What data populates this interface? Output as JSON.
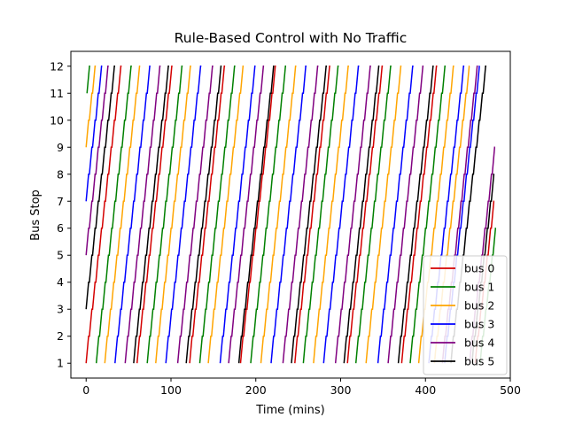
{
  "chart_data": {
    "type": "line",
    "title": "Rule-Based Control with No Traffic",
    "xlabel": "Time (mins)",
    "ylabel": "Bus Stop",
    "xlim": [
      -18,
      500
    ],
    "ylim": [
      0.45,
      12.55
    ],
    "xticks": [
      0,
      100,
      200,
      300,
      400,
      500
    ],
    "yticks": [
      1,
      2,
      3,
      4,
      5,
      6,
      7,
      8,
      9,
      10,
      11,
      12
    ],
    "grid": false,
    "legend_position": "lower-right",
    "stop_travel_minutes": 2.9,
    "stop_dwell_minutes": 0.9,
    "series": [
      {
        "name": "bus 0",
        "color": "#d40000",
        "start": {
          "stop": 1,
          "time": 0
        },
        "departures_from_stop_1": [
          60,
          122,
          182,
          246,
          308,
          372
        ],
        "final": {
          "stop": 7,
          "time": 481
        }
      },
      {
        "name": "bus 1",
        "color": "#008000",
        "start": {
          "stop": 11,
          "time": 1
        },
        "departures_from_stop_1": [
          12,
          72,
          134,
          194,
          256,
          318,
          382
        ],
        "final": {
          "stop": 6,
          "time": 483
        }
      },
      {
        "name": "bus 2",
        "color": "#ffa500",
        "start": {
          "stop": 9,
          "time": 0
        },
        "departures_from_stop_1": [
          22,
          82,
          144,
          206,
          268,
          330,
          392
        ],
        "final": {
          "stop": 12,
          "time": 452
        }
      },
      {
        "name": "bus 3",
        "color": "#0000ff",
        "start": {
          "stop": 7,
          "time": 0
        },
        "departures_from_stop_1": [
          34,
          94,
          158,
          218,
          280,
          344,
          404
        ],
        "final": {
          "stop": 12,
          "time": 464
        }
      },
      {
        "name": "bus 4",
        "color": "#800080",
        "start": {
          "stop": 5,
          "time": 0
        },
        "departures_from_stop_1": [
          46,
          108,
          168,
          232,
          294,
          356,
          420
        ],
        "final": {
          "stop": 9,
          "time": 482
        }
      },
      {
        "name": "bus 5",
        "color": "#000000",
        "start": {
          "stop": 3,
          "time": 0
        },
        "departures_from_stop_1": [
          56,
          118,
          180,
          242,
          304,
          368,
          430
        ],
        "final": {
          "stop": 8,
          "time": 481
        }
      }
    ]
  }
}
